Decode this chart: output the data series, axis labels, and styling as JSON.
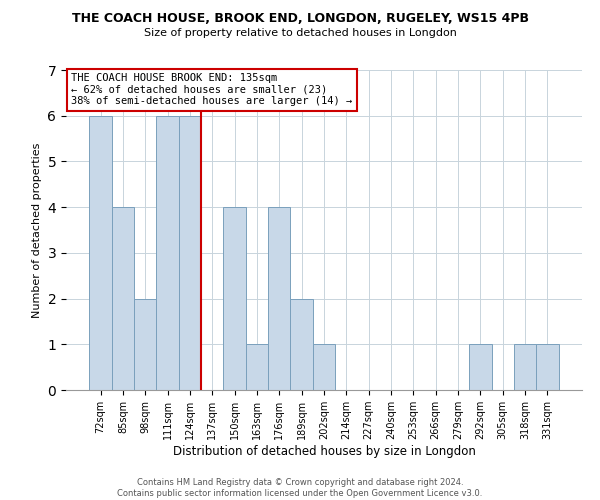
{
  "title": "THE COACH HOUSE, BROOK END, LONGDON, RUGELEY, WS15 4PB",
  "subtitle": "Size of property relative to detached houses in Longdon",
  "xlabel": "Distribution of detached houses by size in Longdon",
  "ylabel": "Number of detached properties",
  "footer_line1": "Contains HM Land Registry data © Crown copyright and database right 2024.",
  "footer_line2": "Contains public sector information licensed under the Open Government Licence v3.0.",
  "annotation_line1": "THE COACH HOUSE BROOK END: 135sqm",
  "annotation_line2": "← 62% of detached houses are smaller (23)",
  "annotation_line3": "38% of semi-detached houses are larger (14) →",
  "bar_labels": [
    "72sqm",
    "85sqm",
    "98sqm",
    "111sqm",
    "124sqm",
    "137sqm",
    "150sqm",
    "163sqm",
    "176sqm",
    "189sqm",
    "202sqm",
    "214sqm",
    "227sqm",
    "240sqm",
    "253sqm",
    "266sqm",
    "279sqm",
    "292sqm",
    "305sqm",
    "318sqm",
    "331sqm"
  ],
  "bar_values": [
    6,
    4,
    2,
    6,
    6,
    0,
    4,
    1,
    4,
    2,
    1,
    0,
    0,
    0,
    0,
    0,
    0,
    1,
    0,
    1,
    1
  ],
  "bar_color": "#c8d8e8",
  "bar_edge_color": "#7aa0bc",
  "reference_line_index": 5,
  "reference_line_color": "#cc0000",
  "ylim": [
    0,
    7
  ],
  "yticks": [
    0,
    1,
    2,
    3,
    4,
    5,
    6,
    7
  ],
  "background_color": "#ffffff",
  "grid_color": "#c8d4dc",
  "annotation_box_edge_color": "#cc0000",
  "annotation_box_face_color": "#ffffff"
}
